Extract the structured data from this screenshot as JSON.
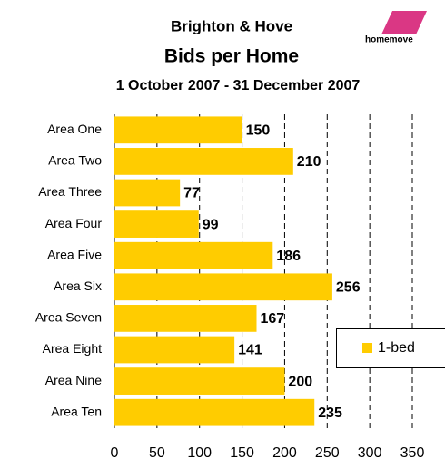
{
  "chart_data": {
    "type": "bar",
    "orientation": "horizontal",
    "title": "Brighton & Hove",
    "subtitle": "Bids per Home",
    "date_range": "1 October 2007 - 31 December 2007",
    "logo_text": "homemove",
    "categories": [
      "Area One",
      "Area Two",
      "Area Three",
      "Area Four",
      "Area Five",
      "Area Six",
      "Area Seven",
      "Area Eight",
      "Area Nine",
      "Area Ten"
    ],
    "series": [
      {
        "name": "1-bed",
        "color": "#ffcc00",
        "values": [
          150,
          210,
          77,
          99,
          186,
          256,
          167,
          141,
          200,
          235
        ]
      }
    ],
    "xlim": [
      0,
      350
    ],
    "xticks": [
      0,
      50,
      100,
      150,
      200,
      250,
      300,
      350
    ],
    "grid": true,
    "legend": "right"
  }
}
